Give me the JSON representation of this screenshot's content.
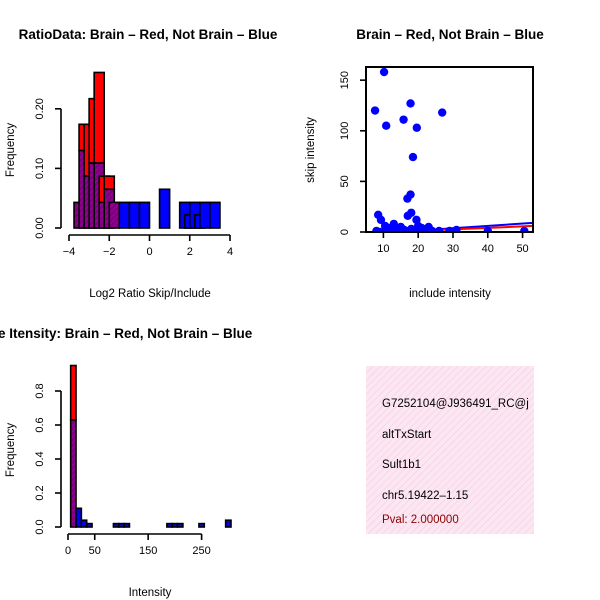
{
  "colors": {
    "red": "#ff0000",
    "blue": "#0000ff",
    "purple": "#7f007f",
    "hatch": "#ff00ff",
    "panel_bg": "#fbe3f0",
    "pval": "#8b0000"
  },
  "chart_data": [
    {
      "id": "ratio-hist",
      "type": "bar",
      "title": "RatioData: Brain – Red, Not Brain – Blue",
      "xlabel": "Log2 Ratio Skip/Include",
      "ylabel": "Frequency",
      "xlim": [
        -4,
        4
      ],
      "ylim": [
        0,
        0.25
      ],
      "xticks": [
        -4,
        -2,
        0,
        2,
        4
      ],
      "yticks": [
        0.0,
        0.1,
        0.2
      ],
      "ytick_labels": [
        "0.00",
        "0.10",
        "0.20"
      ],
      "bin_width": 0.5,
      "series": [
        {
          "name": "Brain",
          "color": "red",
          "bins": [
            [
              -3.5,
              0.043
            ],
            [
              -3.25,
              0.174
            ],
            [
              -3.0,
              0.174
            ],
            [
              -2.75,
              0.217
            ],
            [
              -2.5,
              0.261
            ],
            [
              -2.25,
              0.087
            ],
            [
              -2.0,
              0.087
            ],
            [
              -1.75,
              0.043
            ]
          ]
        },
        {
          "name": "Not Brain",
          "color": "blue",
          "bins": [
            [
              -3.5,
              0.043
            ],
            [
              -3.25,
              0.13
            ],
            [
              -3.0,
              0.087
            ],
            [
              -2.75,
              0.109
            ],
            [
              -2.5,
              0.109
            ],
            [
              -2.25,
              0.043
            ],
            [
              -2.0,
              0.065
            ],
            [
              -1.75,
              0.043
            ],
            [
              -1.25,
              0.043
            ],
            [
              -0.75,
              0.043
            ],
            [
              -0.25,
              0.043
            ],
            [
              0.75,
              0.065
            ],
            [
              1.75,
              0.043
            ],
            [
              2.0,
              0.022
            ],
            [
              2.25,
              0.043
            ],
            [
              2.5,
              0.022
            ],
            [
              2.75,
              0.043
            ],
            [
              3.25,
              0.043
            ]
          ]
        }
      ]
    },
    {
      "id": "intensity-scatter",
      "type": "scatter",
      "title": "Brain – Red, Not Brain – Blue",
      "xlabel": "include intensity",
      "ylabel": "skip intensity",
      "xlim": [
        5,
        53
      ],
      "ylim": [
        0,
        163
      ],
      "xticks": [
        10,
        20,
        30,
        40,
        50
      ],
      "yticks": [
        0,
        50,
        100,
        150
      ],
      "points": [
        [
          10.2,
          158
        ],
        [
          7.6,
          120
        ],
        [
          15.8,
          111
        ],
        [
          10.8,
          105
        ],
        [
          17.8,
          127
        ],
        [
          26.9,
          118
        ],
        [
          19.6,
          103
        ],
        [
          18.5,
          74
        ],
        [
          17.8,
          37
        ],
        [
          16.9,
          33
        ],
        [
          18,
          19
        ],
        [
          17,
          16
        ],
        [
          19.5,
          12
        ],
        [
          8.5,
          17
        ],
        [
          9.3,
          12
        ],
        [
          10.5,
          6
        ],
        [
          11.5,
          4
        ],
        [
          13,
          8
        ],
        [
          14,
          3
        ],
        [
          15,
          5
        ],
        [
          16,
          2
        ],
        [
          18,
          3
        ],
        [
          20,
          6
        ],
        [
          21,
          4
        ],
        [
          22,
          2
        ],
        [
          23,
          5
        ],
        [
          24,
          1
        ],
        [
          8,
          1
        ],
        [
          9,
          0
        ],
        [
          11,
          1
        ],
        [
          12.5,
          0
        ],
        [
          14.5,
          1
        ],
        [
          20,
          1
        ],
        [
          22,
          0.5
        ],
        [
          26,
          1
        ],
        [
          29,
          1
        ],
        [
          31,
          2
        ],
        [
          40,
          1
        ],
        [
          50.5,
          1
        ]
      ],
      "fit_lines": [
        {
          "color": "blue",
          "x": [
            5,
            53
          ],
          "y": [
            -2,
            9
          ]
        },
        {
          "color": "red",
          "x": [
            5,
            53
          ],
          "y": [
            -1,
            6
          ]
        }
      ]
    },
    {
      "id": "gene-intensity-hist",
      "type": "bar",
      "title": "Gene Itensity: Brain – Red, Not Brain – Blue",
      "xlabel": "Intensity",
      "ylabel": "Frequency",
      "xlim": [
        0,
        305
      ],
      "ylim": [
        0,
        1.0
      ],
      "xticks": [
        0,
        50,
        150,
        250
      ],
      "yticks": [
        0.0,
        0.2,
        0.4,
        0.6,
        0.8
      ],
      "ytick_labels": [
        "0.0",
        "0.2",
        "0.4",
        "0.6",
        "0.8"
      ],
      "bin_width": 10,
      "series": [
        {
          "name": "Brain",
          "color": "red",
          "bins": [
            [
              10,
              0.95
            ]
          ]
        },
        {
          "name": "Not Brain",
          "color": "blue",
          "bins": [
            [
              10,
              0.63
            ],
            [
              20,
              0.11
            ],
            [
              30,
              0.04
            ],
            [
              40,
              0.02
            ],
            [
              90,
              0.02
            ],
            [
              100,
              0.02
            ],
            [
              110,
              0.02
            ],
            [
              190,
              0.02
            ],
            [
              200,
              0.02
            ],
            [
              210,
              0.02
            ],
            [
              250,
              0.02
            ],
            [
              300,
              0.04
            ]
          ]
        }
      ]
    }
  ],
  "info_panel": {
    "probe_id": "G7252104@J936491_RC@j",
    "event_type": "altTxStart",
    "gene": "Sult1b1",
    "location": "chr5.19422–1.15",
    "pval": "Pval: 2.000000"
  }
}
